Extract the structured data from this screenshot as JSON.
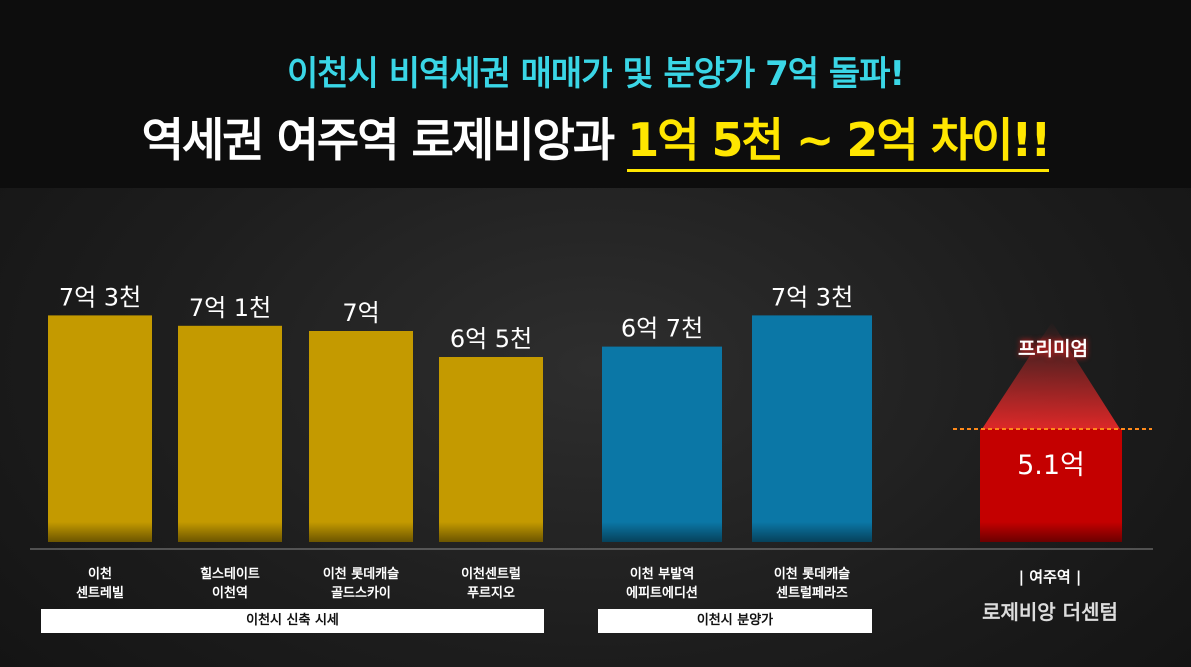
{
  "header": {
    "subtitle": "이천시 비역세권 매매가 및 분양가 7억 돌파!",
    "title_main": "역세권 여주역 로제비앙과 ",
    "title_highlight": "1억 5천 ~ 2억 차이!!"
  },
  "groups": [
    {
      "label": "이천시 신축 시세"
    },
    {
      "label": "이천시 분양가"
    }
  ],
  "chart_data": {
    "type": "bar",
    "categories": [
      [
        "이천",
        "센트레빌"
      ],
      [
        "힐스테이트",
        "이천역"
      ],
      [
        "이천 롯데캐슬",
        "골드스카이"
      ],
      [
        "이천센트럴",
        "푸르지오"
      ],
      [
        "이천 부발역",
        "에피트에디션"
      ],
      [
        "이천 롯데캐슬",
        "센트럴페라즈"
      ]
    ],
    "values": [
      7.3,
      7.1,
      7.0,
      6.5,
      6.7,
      7.3
    ],
    "data_labels": [
      "7억 3천",
      "7억 1천",
      "7억",
      "6억 5천",
      "6억 7천",
      "7억 3천"
    ],
    "bar_groups": [
      0,
      0,
      0,
      0,
      1,
      1
    ],
    "colors": {
      "group0": "#c49a00",
      "group1": "#0b77a6",
      "highlight": "#c40000",
      "premium_glow": "#ff2a2a",
      "dashed_line": "#ff8a1a"
    },
    "highlight": {
      "value": 5.1,
      "data_label": "5.1억",
      "premium_label": "프리미엄",
      "label_top": "| 여주역 |",
      "label_bottom": "로제비앙 더센텀"
    }
  }
}
